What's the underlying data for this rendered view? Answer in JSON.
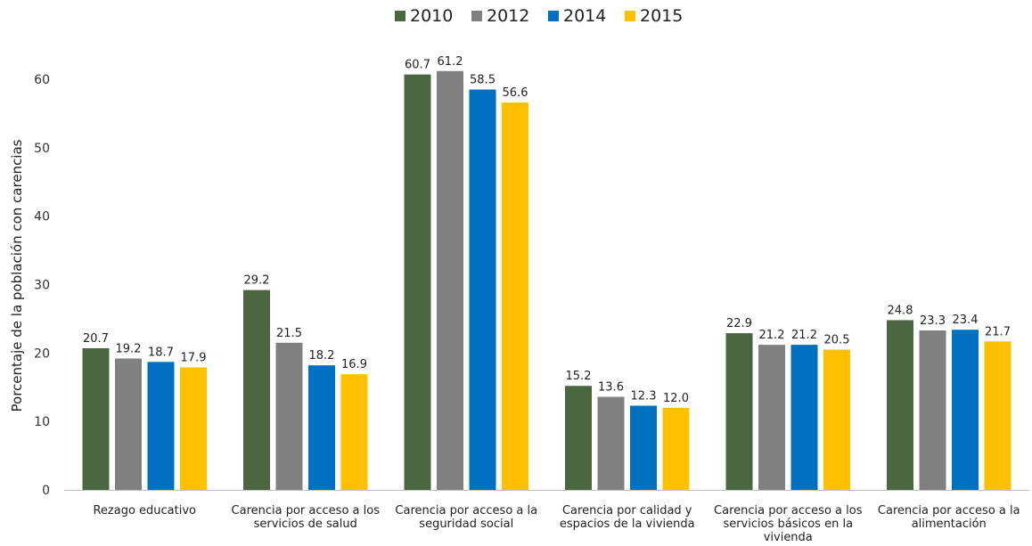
{
  "chart_data": {
    "type": "bar",
    "title": "",
    "xlabel": "",
    "ylabel": "Porcentaje de la población con carencias",
    "ylim": [
      0,
      60
    ],
    "yticks": [
      0,
      10,
      20,
      30,
      40,
      50,
      60
    ],
    "grid": false,
    "legend_position": "top-center",
    "categories": [
      [
        "Rezago educativo"
      ],
      [
        "Carencia por acceso a los",
        "servicios de salud"
      ],
      [
        "Carencia por acceso a la",
        "seguridad social"
      ],
      [
        "Carencia por calidad y",
        "espacios de la vivienda"
      ],
      [
        "Carencia por acceso a los",
        "servicios básicos en la",
        "vivienda"
      ],
      [
        "Carencia por acceso a la",
        "alimentación"
      ]
    ],
    "series": [
      {
        "name": "2010",
        "color": "#4a6741",
        "values": [
          20.7,
          29.2,
          60.7,
          15.2,
          22.9,
          24.8
        ]
      },
      {
        "name": "2012",
        "color": "#808080",
        "values": [
          19.2,
          21.5,
          61.2,
          13.6,
          21.2,
          23.3
        ]
      },
      {
        "name": "2014",
        "color": "#0070c0",
        "values": [
          18.7,
          18.2,
          58.5,
          12.3,
          21.2,
          23.4
        ]
      },
      {
        "name": "2015",
        "color": "#ffc000",
        "values": [
          17.9,
          16.9,
          56.6,
          12.0,
          20.5,
          21.7
        ]
      }
    ]
  }
}
